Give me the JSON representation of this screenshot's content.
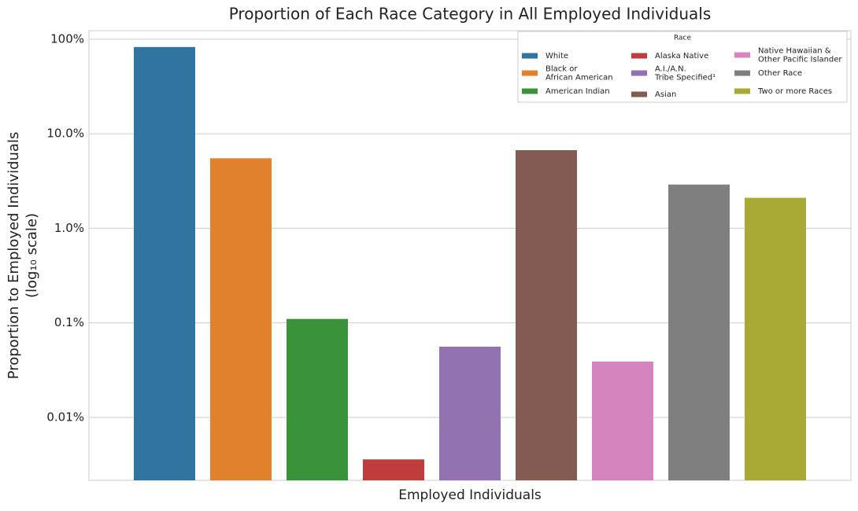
{
  "chart_data": {
    "type": "bar",
    "title": "Proportion of Each Race Category in All Employed Individuals",
    "x_label": "Employed Individuals",
    "y_label": [
      "Proportion to Employed Individuals",
      "(log₁₀ scale)"
    ],
    "legend_title": "Race",
    "log_scale": true,
    "grid": true,
    "legend_position": "upper right",
    "categories": [
      "White",
      "Black or\nAfrican American",
      "American Indian",
      "Alaska Native",
      "A.I./A.N.\nTribe Specified¹",
      "Asian",
      "Native Hawaiian &\nOther Pacific Islander",
      "Other Race",
      "Two or more Races"
    ],
    "values": [
      82.6,
      5.5,
      0.11,
      0.0036,
      0.056,
      6.7,
      0.039,
      2.9,
      2.1
    ],
    "colors": [
      "#3274a1",
      "#e1812c",
      "#3a923a",
      "#c03d3e",
      "#9372b2",
      "#845b53",
      "#d684bd",
      "#7f7f7f",
      "#a9aa35"
    ],
    "ylim": [
      0.00216,
      123
    ],
    "yticks": [
      {
        "value": 0.01,
        "label": "0.01%"
      },
      {
        "value": 0.1,
        "label": "0.1%"
      },
      {
        "value": 1,
        "label": "1.0%"
      },
      {
        "value": 10,
        "label": "10.0%"
      },
      {
        "value": 100,
        "label": "100%"
      }
    ]
  }
}
